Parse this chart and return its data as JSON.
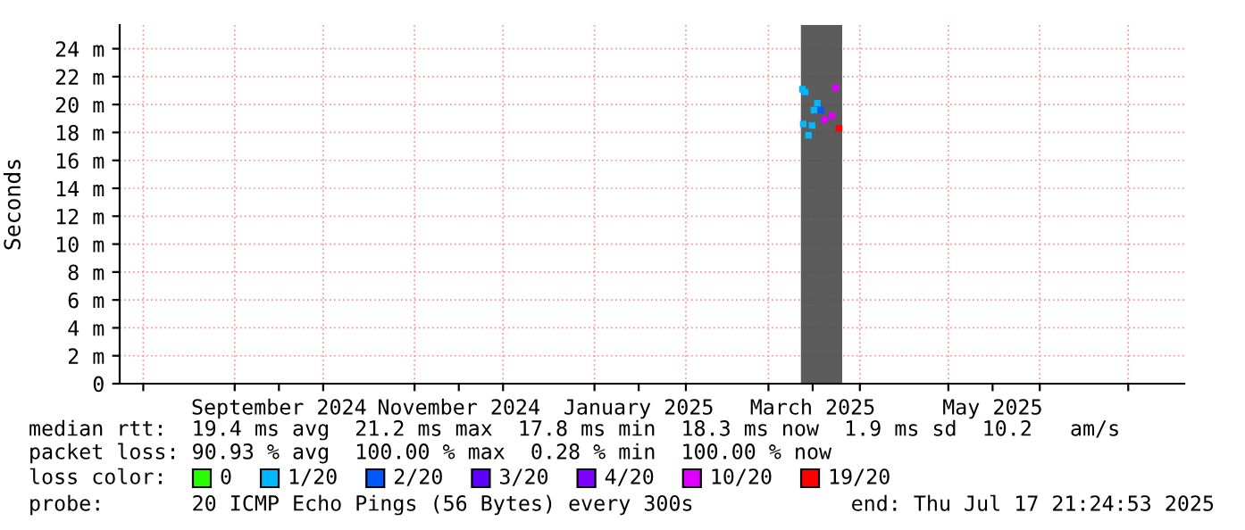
{
  "chart_data": {
    "type": "scatter",
    "ylabel": "Seconds",
    "xlim": [
      "2024-07-24",
      "2025-07-20"
    ],
    "xticks": [
      {
        "value": "2024-08-01",
        "label": null
      },
      {
        "value": "2024-09-01",
        "label": null
      },
      {
        "value": "2024-10-01",
        "label": null
      },
      {
        "value": "2024-11-01",
        "label": null
      },
      {
        "value": "2024-12-01",
        "label": null
      },
      {
        "value": "2025-01-01",
        "label": null
      },
      {
        "value": "2025-02-01",
        "label": null
      },
      {
        "value": "2025-03-01",
        "label": null
      },
      {
        "value": "2025-04-01",
        "label": null
      },
      {
        "value": "2025-05-01",
        "label": null
      },
      {
        "value": "2025-06-01",
        "label": null
      },
      {
        "value": "2025-07-01",
        "label": null
      },
      {
        "value": "2024-09-16",
        "label": "September 2024"
      },
      {
        "value": "2024-11-16",
        "label": "November 2024"
      },
      {
        "value": "2025-01-16",
        "label": "January 2025"
      },
      {
        "value": "2025-03-16",
        "label": "March 2025"
      },
      {
        "value": "2025-05-16",
        "label": "May 2025"
      }
    ],
    "ylim": [
      0,
      25.7
    ],
    "yticks": [
      0,
      {
        "value": 2,
        "label": "2 m"
      },
      {
        "value": 4,
        "label": "4 m"
      },
      {
        "value": 6,
        "label": "6 m"
      },
      {
        "value": 8,
        "label": "8 m"
      },
      {
        "value": 10,
        "label": "10 m"
      },
      {
        "value": 12,
        "label": "12 m"
      },
      {
        "value": 14,
        "label": "14 m"
      },
      {
        "value": 16,
        "label": "16 m"
      },
      {
        "value": 18,
        "label": "18 m"
      },
      {
        "value": 20,
        "label": "20 m"
      },
      {
        "value": 22,
        "label": "22 m"
      },
      {
        "value": 24,
        "label": "24 m"
      }
    ],
    "bands": [
      {
        "axis": "x",
        "from": "2025-03-12",
        "to": "2025-03-26",
        "color": "#404040"
      }
    ],
    "grid": true,
    "marker": "square",
    "legend": "bottom",
    "legend_title": "loss color:",
    "series": [
      {
        "name": "0",
        "color": "#26ff00"
      },
      {
        "name": "1/20",
        "color": "#00b8ff",
        "x": [
          "2025-03-12T12:00",
          "2025-03-12T19:00",
          "2025-03-13T10:00",
          "2025-03-14T14:00",
          "2025-03-15T19:00",
          "2025-03-16T10:00",
          "2025-03-17T14:00"
        ],
        "values": [
          21.1,
          18.6,
          20.9,
          17.8,
          18.5,
          19.6,
          20.1
        ]
      },
      {
        "name": "2/20",
        "color": "#0059ff",
        "x": [
          "2025-03-18T19:00"
        ],
        "values": [
          19.6
        ]
      },
      {
        "name": "3/20",
        "color": "#5e00ff"
      },
      {
        "name": "4/20",
        "color": "#7e00ff"
      },
      {
        "name": "10/20",
        "color": "#dd00ff",
        "x": [
          "2025-03-20T00:00",
          "2025-03-22T12:00",
          "2025-03-23T17:00"
        ],
        "values": [
          18.9,
          19.2,
          21.2
        ]
      },
      {
        "name": "19/20",
        "color": "#ff0000",
        "x": [
          "2025-03-24T22:00"
        ],
        "values": [
          18.3
        ]
      }
    ],
    "annotations": [
      "median rtt:  19.4 ms avg  21.2 ms max  17.8 ms min  18.3 ms now  1.9 ms sd  10.2   am/s",
      "packet loss: 90.93 % avg  100.00 % max  0.28 % min  100.00 % now",
      "probe:       20 ICMP Echo Pings (56 Bytes) every 300s",
      "end: Thu Jul 17 21:24:53 2025"
    ]
  }
}
